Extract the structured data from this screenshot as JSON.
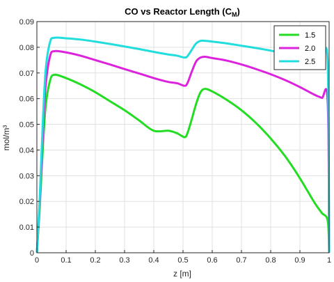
{
  "chart_data": {
    "type": "line",
    "title": "CO vs Reactor Length (C",
    "title_subscript": "M",
    "title_suffix": ")",
    "xlabel": "z [m]",
    "ylabel": "mol/m³",
    "xlim": [
      0,
      1
    ],
    "ylim": [
      0,
      0.09
    ],
    "xticks": [
      0,
      0.1,
      0.2,
      0.3,
      0.4,
      0.5,
      0.6,
      0.7,
      0.8,
      0.9,
      1
    ],
    "xtick_labels": [
      "0",
      "0.1",
      "0.2",
      "0.3",
      "0.4",
      "0.5",
      "0.6",
      "0.7",
      "0.8",
      "0.9",
      "1"
    ],
    "yticks": [
      0,
      0.01,
      0.02,
      0.03,
      0.04,
      0.05,
      0.06,
      0.07,
      0.08,
      0.09
    ],
    "ytick_labels": [
      "0",
      "0.01",
      "0.02",
      "0.03",
      "0.04",
      "0.05",
      "0.06",
      "0.07",
      "0.08",
      "0.09"
    ],
    "grid": true,
    "legend_position": "top-right",
    "series": [
      {
        "name": "1.5",
        "color": "#22dd22",
        "x": [
          0,
          0.01,
          0.02,
          0.03,
          0.045,
          0.06,
          0.1,
          0.15,
          0.2,
          0.25,
          0.3,
          0.35,
          0.4,
          0.45,
          0.48,
          0.505,
          0.515,
          0.53,
          0.545,
          0.56,
          0.575,
          0.6,
          0.65,
          0.7,
          0.75,
          0.8,
          0.85,
          0.9,
          0.95,
          0.975,
          0.995,
          1
        ],
        "y": [
          0,
          0.018,
          0.04,
          0.057,
          0.067,
          0.0693,
          0.068,
          0.0655,
          0.0625,
          0.059,
          0.0555,
          0.0515,
          0.0475,
          0.0475,
          0.0465,
          0.045,
          0.0465,
          0.052,
          0.058,
          0.0625,
          0.0638,
          0.0628,
          0.0595,
          0.0555,
          0.0505,
          0.0445,
          0.0375,
          0.029,
          0.0195,
          0.0155,
          0.0125,
          0
        ]
      },
      {
        "name": "2.0",
        "color": "#dd22dd",
        "x": [
          0,
          0.01,
          0.02,
          0.03,
          0.045,
          0.06,
          0.1,
          0.15,
          0.2,
          0.25,
          0.3,
          0.35,
          0.4,
          0.45,
          0.48,
          0.505,
          0.515,
          0.53,
          0.545,
          0.56,
          0.575,
          0.6,
          0.65,
          0.7,
          0.75,
          0.8,
          0.85,
          0.9,
          0.95,
          0.975,
          0.995,
          1
        ],
        "y": [
          0,
          0.02,
          0.045,
          0.065,
          0.0765,
          0.0785,
          0.078,
          0.0767,
          0.075,
          0.0733,
          0.0715,
          0.0698,
          0.068,
          0.0665,
          0.066,
          0.065,
          0.066,
          0.0705,
          0.0745,
          0.076,
          0.0763,
          0.0758,
          0.0748,
          0.0733,
          0.0715,
          0.0695,
          0.0672,
          0.0645,
          0.0615,
          0.0603,
          0.059,
          0
        ]
      },
      {
        "name": "2.5",
        "color": "#22dddd",
        "x": [
          0,
          0.01,
          0.02,
          0.03,
          0.045,
          0.06,
          0.1,
          0.15,
          0.2,
          0.25,
          0.3,
          0.35,
          0.4,
          0.45,
          0.48,
          0.505,
          0.515,
          0.53,
          0.545,
          0.56,
          0.575,
          0.6,
          0.65,
          0.7,
          0.75,
          0.8,
          0.85,
          0.9,
          0.95,
          0.975,
          0.995,
          1
        ],
        "y": [
          0,
          0.022,
          0.05,
          0.071,
          0.082,
          0.0837,
          0.0835,
          0.083,
          0.0822,
          0.0813,
          0.0803,
          0.0793,
          0.0782,
          0.0772,
          0.0767,
          0.076,
          0.0765,
          0.079,
          0.0815,
          0.0825,
          0.0825,
          0.0822,
          0.0815,
          0.0806,
          0.0797,
          0.0787,
          0.0775,
          0.0762,
          0.0748,
          0.0745,
          0.0742,
          0
        ]
      }
    ]
  }
}
